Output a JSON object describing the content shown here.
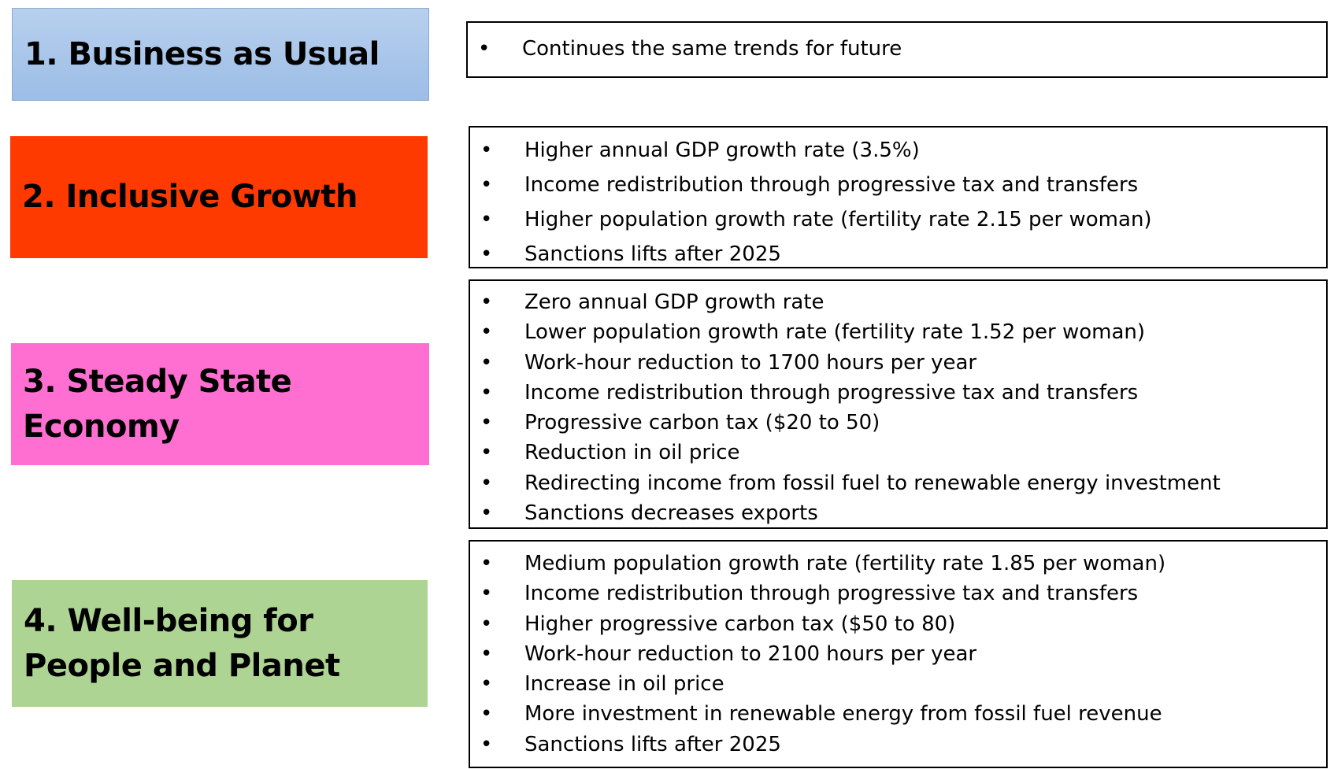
{
  "scenarios": [
    {
      "title": "1. Business as Usual",
      "color": "#a9c7e8",
      "bullets": [
        "Continues the same trends for future"
      ]
    },
    {
      "title": "2. Inclusive Growth",
      "color": "#ff3a00",
      "bullets": [
        "Higher annual GDP growth rate (3.5%)",
        "Income redistribution through progressive tax and transfers",
        "Higher population growth rate (fertility rate 2.15 per woman)",
        "Sanctions lifts after 2025"
      ]
    },
    {
      "title": "3. Steady State Economy",
      "color": "#ff6fd2",
      "bullets": [
        "Zero annual GDP growth rate",
        "Lower population growth rate (fertility rate 1.52 per woman)",
        "Work-hour reduction to 1700 hours per year",
        "Income redistribution through progressive tax and transfers",
        "Progressive carbon tax ($20 to 50)",
        "Reduction in oil price",
        "Redirecting income from fossil fuel to renewable energy investment",
        "Sanctions decreases exports"
      ]
    },
    {
      "title": "4. Well-being for People and Planet",
      "color": "#aed494",
      "bullets": [
        "Medium population growth rate (fertility rate 1.85 per woman)",
        "Income redistribution through progressive tax and transfers",
        "Higher progressive carbon tax ($50 to 80)",
        "Work-hour reduction to 2100 hours per year",
        "Increase in oil price",
        "More investment in renewable energy from fossil fuel revenue",
        "Sanctions lifts after 2025"
      ]
    }
  ]
}
